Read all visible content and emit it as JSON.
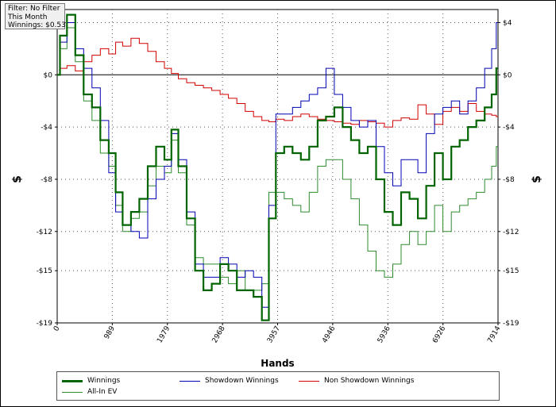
{
  "filter_box": {
    "line1": "Filter: No Filter",
    "line2": "This Month",
    "line3": "Winnings: $0.53"
  },
  "colors": {
    "winnings": "#006400",
    "showdown": "#0000b0",
    "non_showdown": "#d00000",
    "allin_ev": "#2e8b2e"
  },
  "chart_data": {
    "type": "line",
    "title": "",
    "xlabel": "Hands",
    "ylabel": "$",
    "ylabel_right": "$",
    "xlim": [
      0,
      7914
    ],
    "ylim": [
      -19,
      5
    ],
    "x_ticks": [
      0,
      989,
      1979,
      2968,
      3957,
      4946,
      5936,
      6926,
      7914
    ],
    "x_tick_labels": [
      "0",
      "989",
      "1979",
      "2968",
      "3957",
      "4946",
      "5936",
      "6926",
      "7914"
    ],
    "y_ticks": [
      4,
      0,
      -4,
      -8,
      -12,
      -15,
      -19
    ],
    "y_tick_labels": [
      "$4",
      "$0",
      "-$4",
      "-$8",
      "-$12",
      "-$15",
      "-$19"
    ],
    "grid": true,
    "legend_position": "bottom",
    "x": [
      0,
      100,
      250,
      400,
      550,
      700,
      850,
      1000,
      1100,
      1250,
      1400,
      1550,
      1700,
      1850,
      2000,
      2100,
      2250,
      2400,
      2550,
      2700,
      2850,
      3000,
      3150,
      3300,
      3450,
      3600,
      3750,
      3850,
      4000,
      4150,
      4300,
      4450,
      4600,
      4750,
      4900,
      5050,
      5200,
      5350,
      5500,
      5650,
      5800,
      5950,
      6100,
      6250,
      6400,
      6550,
      6700,
      6850,
      7000,
      7150,
      7300,
      7450,
      7600,
      7750,
      7850,
      7914
    ],
    "series": [
      {
        "name": "Winnings",
        "values": [
          0,
          3,
          4.6,
          1.5,
          -1.5,
          -2.5,
          -5,
          -6,
          -9,
          -11.5,
          -10.5,
          -9.5,
          -7,
          -5.5,
          -6.5,
          -4.2,
          -7,
          -11,
          -15,
          -16.5,
          -16,
          -14.5,
          -15,
          -16.5,
          -16.5,
          -17,
          -18.8,
          -11,
          -6,
          -5.5,
          -6,
          -6.5,
          -5.5,
          -3.5,
          -3.2,
          -2.5,
          -4,
          -5,
          -6,
          -5.5,
          -8,
          -10.5,
          -11.5,
          -9,
          -9.5,
          -11,
          -8.5,
          -6,
          -8,
          -5.5,
          -5,
          -4,
          -3.5,
          -2.5,
          -1.5,
          0.5
        ]
      },
      {
        "name": "Showdown Winnings",
        "values": [
          0,
          2.5,
          4,
          2,
          0.5,
          -1,
          -3.5,
          -7.5,
          -10.5,
          -11.5,
          -12,
          -12.5,
          -9.5,
          -8,
          -7,
          -4.5,
          -6.5,
          -10.5,
          -14.5,
          -15.5,
          -15.5,
          -14,
          -14.5,
          -15.5,
          -15,
          -15.5,
          -17.8,
          -10,
          -3,
          -3,
          -2.5,
          -2,
          -1.5,
          -1,
          0.5,
          -1.5,
          -2.5,
          -3.5,
          -4,
          -3.5,
          -5.5,
          -7.5,
          -8.5,
          -6.5,
          -6.5,
          -7.5,
          -4.5,
          -3,
          -2.5,
          -2,
          -3,
          -2,
          -1,
          0.5,
          2,
          4
        ]
      },
      {
        "name": "Non Showdown Winnings",
        "values": [
          0,
          0.5,
          0.7,
          0.3,
          1,
          1.5,
          2,
          1.6,
          2.5,
          2.2,
          2.8,
          2.4,
          1.8,
          1,
          0.5,
          0.1,
          -0.3,
          -0.6,
          -0.8,
          -1,
          -1.2,
          -1.5,
          -1.8,
          -2.2,
          -2.8,
          -3.2,
          -3.5,
          -3.6,
          -3.4,
          -3.5,
          -3.2,
          -3,
          -3.2,
          -3.4,
          -3.5,
          -3.6,
          -3.7,
          -3.8,
          -3.5,
          -3.6,
          -3.7,
          -4,
          -3.5,
          -3.3,
          -3.4,
          -2.3,
          -3,
          -3.8,
          -2.8,
          -2.5,
          -2.8,
          -2.2,
          -2.8,
          -3,
          -3.1,
          -3.2
        ]
      },
      {
        "name": "All-In EV",
        "values": [
          0,
          2,
          3.6,
          1,
          -2,
          -3.5,
          -6,
          -7,
          -10,
          -12,
          -11,
          -10.5,
          -8.5,
          -7,
          -7.5,
          -5,
          -7.5,
          -11.5,
          -14,
          -14.5,
          -14.5,
          -15.5,
          -16,
          -15,
          -16.5,
          -16.5,
          -16,
          -9,
          -9,
          -9.5,
          -10,
          -10.5,
          -9,
          -7,
          -6.5,
          -6.5,
          -8,
          -9.5,
          -11.5,
          -13.5,
          -15,
          -15.5,
          -14.5,
          -13,
          -12,
          -13,
          -12,
          -10,
          -12,
          -10.5,
          -10,
          -9.5,
          -9,
          -8,
          -7,
          -5.5
        ]
      }
    ]
  }
}
